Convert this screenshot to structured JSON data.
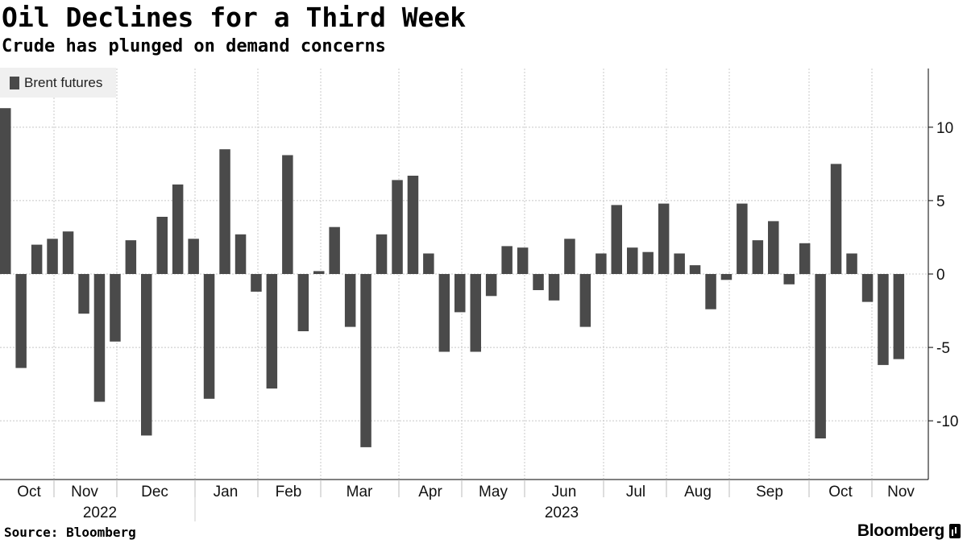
{
  "title": "Oil Declines for a Third Week",
  "subtitle": "Crude has plunged on demand concerns",
  "source": "Source: Bloomberg",
  "brand": "Bloomberg",
  "colors": {
    "bar": "#4a4a4a",
    "grid": "#c8c8c8",
    "background": "#ffffff"
  },
  "chart_data": {
    "type": "bar",
    "legend": [
      "Brent futures"
    ],
    "legend_position": "top-left",
    "grid": true,
    "y_axis_side": "right",
    "ylim": [
      -14,
      14
    ],
    "yticks": [
      10,
      5,
      0,
      -5,
      -10
    ],
    "month_labels": [
      "Oct",
      "Nov",
      "Dec",
      "Jan",
      "Feb",
      "Mar",
      "Apr",
      "May",
      "Jun",
      "Jul",
      "Aug",
      "Sep",
      "Oct",
      "Nov"
    ],
    "year_labels": [
      "2022",
      "2023"
    ],
    "series": [
      {
        "name": "Brent futures",
        "values": [
          11.3,
          -6.4,
          2.0,
          2.4,
          2.9,
          -2.7,
          -8.7,
          -4.6,
          2.3,
          -11.0,
          3.9,
          6.1,
          2.4,
          -8.5,
          8.5,
          2.7,
          -1.2,
          -7.8,
          8.1,
          -3.9,
          0.2,
          3.2,
          -3.6,
          -11.8,
          2.7,
          6.4,
          6.7,
          1.4,
          -5.3,
          -2.6,
          -5.3,
          -1.5,
          1.9,
          1.8,
          -1.1,
          -1.8,
          2.4,
          -3.6,
          1.4,
          4.7,
          1.8,
          1.5,
          4.8,
          1.4,
          0.6,
          -2.4,
          -0.4,
          4.8,
          2.3,
          3.6,
          -0.7,
          2.1,
          -11.2,
          7.5,
          1.4,
          -1.9,
          -6.2,
          -5.8
        ]
      }
    ]
  }
}
